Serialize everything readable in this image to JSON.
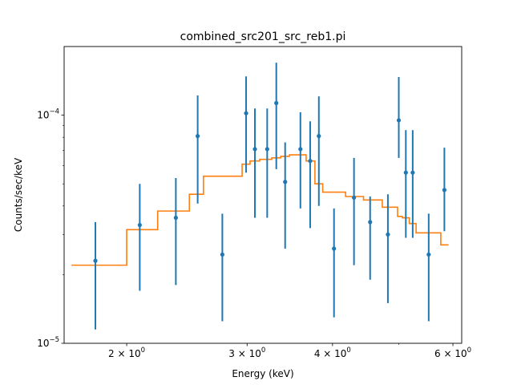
{
  "chart_data": {
    "type": "scatter",
    "title": "combined_src201_src_reb1.pi",
    "xlabel": "Energy (keV)",
    "ylabel": "Counts/sec/keV",
    "xscale": "log",
    "yscale": "log",
    "xlim": [
      1.62,
      6.18
    ],
    "ylim": [
      1e-05,
      0.0002
    ],
    "grid": false,
    "legend": "none",
    "x_ticks": [
      {
        "value": 2,
        "base": "2 × 10",
        "exp": "0"
      },
      {
        "value": 3,
        "base": "3 × 10",
        "exp": "0"
      },
      {
        "value": 4,
        "base": "4 × 10",
        "exp": "0"
      },
      {
        "value": 6,
        "base": "6 × 10",
        "exp": "0"
      }
    ],
    "x_minor_ticks": [
      5
    ],
    "y_ticks": [
      {
        "value": 1e-05,
        "base": "10",
        "exp": "−5"
      },
      {
        "value": 0.0001,
        "base": "10",
        "exp": "−4"
      }
    ],
    "y_minor_ticks": [
      2e-05,
      3e-05,
      4e-05,
      5e-05,
      6e-05,
      7e-05,
      8e-05,
      9e-05
    ],
    "colors": {
      "data": "#1f77b4",
      "model": "#ff7f0e"
    },
    "series": [
      {
        "kind": "errorbar",
        "points": [
          {
            "x": 1.8,
            "y": 2.3e-05,
            "ylo": 1.15e-05,
            "yhi": 3.4e-05
          },
          {
            "x": 2.09,
            "y": 3.3e-05,
            "ylo": 1.7e-05,
            "yhi": 5e-05
          },
          {
            "x": 2.36,
            "y": 3.55e-05,
            "ylo": 1.8e-05,
            "yhi": 5.3e-05
          },
          {
            "x": 2.54,
            "y": 8.1e-05,
            "ylo": 4.1e-05,
            "yhi": 0.000122
          },
          {
            "x": 2.76,
            "y": 2.45e-05,
            "ylo": 1.25e-05,
            "yhi": 3.7e-05
          },
          {
            "x": 2.99,
            "y": 0.000102,
            "ylo": 5.6e-05,
            "yhi": 0.000148
          },
          {
            "x": 3.08,
            "y": 7.1e-05,
            "ylo": 3.55e-05,
            "yhi": 0.000107
          },
          {
            "x": 3.21,
            "y": 7.1e-05,
            "ylo": 3.55e-05,
            "yhi": 0.000107
          },
          {
            "x": 3.31,
            "y": 0.000113,
            "ylo": 5.8e-05,
            "yhi": 0.00017
          },
          {
            "x": 3.41,
            "y": 5.1e-05,
            "ylo": 2.6e-05,
            "yhi": 7.6e-05
          },
          {
            "x": 3.59,
            "y": 7.1e-05,
            "ylo": 3.9e-05,
            "yhi": 0.000103
          },
          {
            "x": 3.71,
            "y": 6.3e-05,
            "ylo": 3.2e-05,
            "yhi": 9.4e-05
          },
          {
            "x": 3.82,
            "y": 8.1e-05,
            "ylo": 4e-05,
            "yhi": 0.000121
          },
          {
            "x": 4.02,
            "y": 2.6e-05,
            "ylo": 1.3e-05,
            "yhi": 3.9e-05
          },
          {
            "x": 4.3,
            "y": 4.35e-05,
            "ylo": 2.2e-05,
            "yhi": 6.5e-05
          },
          {
            "x": 4.54,
            "y": 3.4e-05,
            "ylo": 1.9e-05,
            "yhi": 4.4e-05
          },
          {
            "x": 4.82,
            "y": 3e-05,
            "ylo": 1.5e-05,
            "yhi": 4.5e-05
          },
          {
            "x": 5.0,
            "y": 9.5e-05,
            "ylo": 6.5e-05,
            "yhi": 0.000147
          },
          {
            "x": 5.12,
            "y": 5.6e-05,
            "ylo": 2.9e-05,
            "yhi": 8.6e-05
          },
          {
            "x": 5.24,
            "y": 5.6e-05,
            "ylo": 2.9e-05,
            "yhi": 8.6e-05
          },
          {
            "x": 5.53,
            "y": 2.45e-05,
            "ylo": 1.25e-05,
            "yhi": 3.7e-05
          },
          {
            "x": 5.83,
            "y": 4.7e-05,
            "ylo": 3.1e-05,
            "yhi": 7.2e-05
          }
        ]
      },
      {
        "kind": "step",
        "steps": [
          {
            "x0": 1.66,
            "x1": 2.0,
            "y": 2.2e-05
          },
          {
            "x0": 2.0,
            "x1": 2.22,
            "y": 3.15e-05
          },
          {
            "x0": 2.22,
            "x1": 2.47,
            "y": 3.8e-05
          },
          {
            "x0": 2.47,
            "x1": 2.59,
            "y": 4.5e-05
          },
          {
            "x0": 2.59,
            "x1": 2.95,
            "y": 5.4e-05
          },
          {
            "x0": 2.95,
            "x1": 3.03,
            "y": 6.1e-05
          },
          {
            "x0": 3.03,
            "x1": 3.13,
            "y": 6.3e-05
          },
          {
            "x0": 3.13,
            "x1": 3.26,
            "y": 6.4e-05
          },
          {
            "x0": 3.26,
            "x1": 3.36,
            "y": 6.5e-05
          },
          {
            "x0": 3.36,
            "x1": 3.46,
            "y": 6.6e-05
          },
          {
            "x0": 3.46,
            "x1": 3.66,
            "y": 6.7e-05
          },
          {
            "x0": 3.66,
            "x1": 3.77,
            "y": 6.3e-05
          },
          {
            "x0": 3.77,
            "x1": 3.87,
            "y": 5e-05
          },
          {
            "x0": 3.87,
            "x1": 4.18,
            "y": 4.6e-05
          },
          {
            "x0": 4.18,
            "x1": 4.44,
            "y": 4.4e-05
          },
          {
            "x0": 4.44,
            "x1": 4.73,
            "y": 4.25e-05
          },
          {
            "x0": 4.73,
            "x1": 4.98,
            "y": 3.95e-05
          },
          {
            "x0": 4.98,
            "x1": 5.06,
            "y": 3.6e-05
          },
          {
            "x0": 5.06,
            "x1": 5.18,
            "y": 3.55e-05
          },
          {
            "x0": 5.18,
            "x1": 5.3,
            "y": 3.35e-05
          },
          {
            "x0": 5.3,
            "x1": 5.76,
            "y": 3.05e-05
          },
          {
            "x0": 5.76,
            "x1": 5.91,
            "y": 2.7e-05
          }
        ]
      }
    ]
  }
}
